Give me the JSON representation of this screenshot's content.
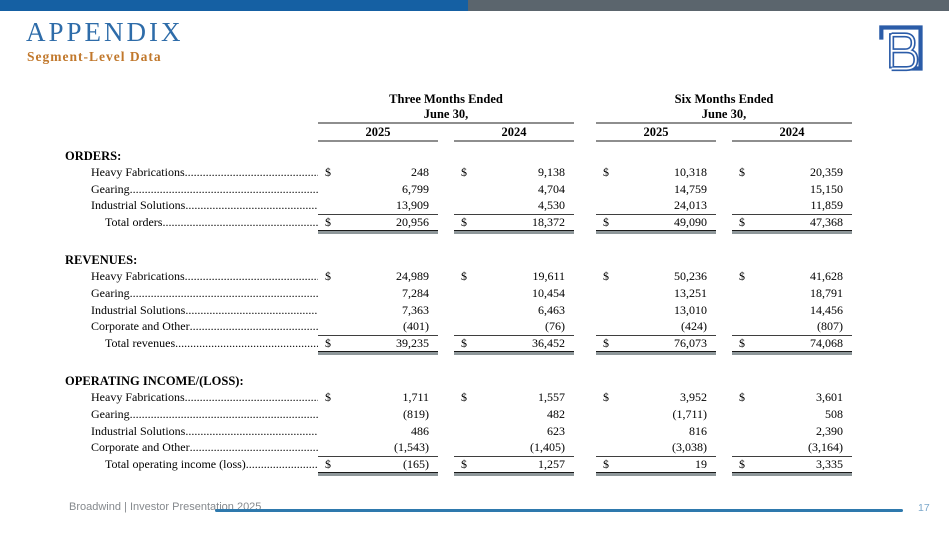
{
  "slide": {
    "title": "APPENDIX",
    "subtitle": "Segment-Level Data",
    "footer_left": "Broadwind  | Investor Presentation 2025",
    "page_number": "17"
  },
  "colors": {
    "topbar_blue": "#1560a3",
    "topbar_gray": "#5b656d",
    "title_blue": "#2e6ca9",
    "subtitle_orange": "#c1782c",
    "logo_blue": "#2b5ca8",
    "footer_line_blue": "#2e79ad",
    "page_number_blue": "#7ba8cb"
  },
  "table": {
    "col_groups": [
      {
        "line1": "Three Months Ended",
        "line2": "June 30,",
        "years": [
          "2025",
          "2024"
        ]
      },
      {
        "line1": "Six Months Ended",
        "line2": "June 30,",
        "years": [
          "2025",
          "2024"
        ]
      }
    ],
    "sections": [
      {
        "heading": "ORDERS:",
        "rows": [
          {
            "label": "Heavy Fabrications",
            "dollar": true,
            "values": [
              "248",
              "9,138",
              "10,318",
              "20,359"
            ]
          },
          {
            "label": "Gearing",
            "dollar": false,
            "values": [
              "6,799",
              "4,704",
              "14,759",
              "15,150"
            ]
          },
          {
            "label": "Industrial Solutions",
            "dollar": false,
            "rule_below": true,
            "values": [
              "13,909",
              "4,530",
              "24,013",
              "11,859"
            ]
          },
          {
            "label": "Total orders",
            "dollar": true,
            "total": true,
            "values": [
              "20,956",
              "18,372",
              "49,090",
              "47,368"
            ]
          }
        ]
      },
      {
        "heading": "REVENUES:",
        "rows": [
          {
            "label": "Heavy Fabrications",
            "dollar": true,
            "values": [
              "24,989",
              "19,611",
              "50,236",
              "41,628"
            ]
          },
          {
            "label": "Gearing",
            "dollar": false,
            "values": [
              "7,284",
              "10,454",
              "13,251",
              "18,791"
            ]
          },
          {
            "label": "Industrial Solutions",
            "dollar": false,
            "values": [
              "7,363",
              "6,463",
              "13,010",
              "14,456"
            ]
          },
          {
            "label": "Corporate and Other",
            "dollar": false,
            "rule_below": true,
            "values": [
              "(401)",
              "(76)",
              "(424)",
              "(807)"
            ]
          },
          {
            "label": "Total revenues",
            "dollar": true,
            "total": true,
            "values": [
              "39,235",
              "36,452",
              "76,073",
              "74,068"
            ]
          }
        ]
      },
      {
        "heading": "OPERATING INCOME/(LOSS):",
        "rows": [
          {
            "label": "Heavy Fabrications",
            "dollar": true,
            "values": [
              "1,711",
              "1,557",
              "3,952",
              "3,601"
            ]
          },
          {
            "label": "Gearing",
            "dollar": false,
            "values": [
              "(819)",
              "482",
              "(1,711)",
              "508"
            ]
          },
          {
            "label": "Industrial Solutions",
            "dollar": false,
            "values": [
              "486",
              "623",
              "816",
              "2,390"
            ]
          },
          {
            "label": "Corporate and Other",
            "dollar": false,
            "rule_below": true,
            "values": [
              "(1,543)",
              "(1,405)",
              "(3,038)",
              "(3,164)"
            ]
          },
          {
            "label": "Total operating income (loss)",
            "dollar": true,
            "total": true,
            "values": [
              "(165)",
              "1,257",
              "19",
              "3,335"
            ]
          }
        ]
      }
    ]
  }
}
